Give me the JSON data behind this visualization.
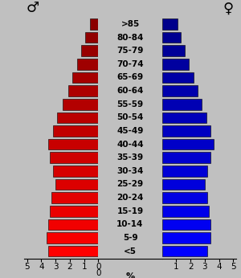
{
  "age_groups": [
    "<5",
    "5-9",
    "10-14",
    "15-19",
    "20-24",
    "25-29",
    "30-34",
    "35-39",
    "40-44",
    "45-49",
    "50-54",
    "55-59",
    "60-64",
    "65-69",
    "70-74",
    "75-79",
    "80-84",
    ">85"
  ],
  "male": [
    3.5,
    3.6,
    3.5,
    3.4,
    3.3,
    3.0,
    3.2,
    3.4,
    3.5,
    3.2,
    2.9,
    2.5,
    2.1,
    1.8,
    1.5,
    1.2,
    0.9,
    0.6
  ],
  "female": [
    3.2,
    3.4,
    3.4,
    3.3,
    3.2,
    3.0,
    3.2,
    3.4,
    3.6,
    3.4,
    3.1,
    2.8,
    2.5,
    2.2,
    1.9,
    1.6,
    1.3,
    1.1
  ],
  "background_color": "#c0c0c0",
  "bar_edge_color": "#000000",
  "xlim": 5.2,
  "male_label": "♂",
  "female_label": "♀",
  "tick_fontsize": 7.5,
  "label_fontsize": 7.5,
  "symbol_fontsize": 13
}
